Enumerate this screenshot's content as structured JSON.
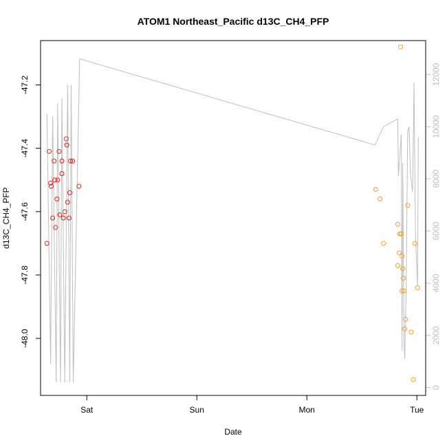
{
  "chart_data": {
    "type": "scatter",
    "title": "ATOM1 Northeast_Pacific d13C_CH4_PFP",
    "xlabel": "Date",
    "ylabel": "d13C_CH4_PFP",
    "x_ticks": [
      {
        "label": "Sat",
        "day": 1.0
      },
      {
        "label": "Sun",
        "day": 2.0
      },
      {
        "label": "Mon",
        "day": 3.0
      },
      {
        "label": "Tue",
        "day": 4.0
      }
    ],
    "xlim": [
      0.58,
      4.08
    ],
    "ylim": [
      -48.18,
      -47.06
    ],
    "y_ticks": [
      -48.0,
      -47.8,
      -47.6,
      -47.4,
      -47.2
    ],
    "right_axis": {
      "color": "#bebebe",
      "ticks": [
        0,
        2000,
        4000,
        6000,
        8000,
        10000,
        12000
      ],
      "ylim": [
        -300,
        13300
      ]
    },
    "colors": {
      "series1": "#e41a1c",
      "series2": "#ff9a1e",
      "altitude_line": "#bebebe"
    },
    "series": [
      {
        "color": "#e41a1c",
        "points": [
          {
            "x": 0.638,
            "y": -47.7
          },
          {
            "x": 0.658,
            "y": -47.41
          },
          {
            "x": 0.671,
            "y": -47.51
          },
          {
            "x": 0.677,
            "y": -47.52
          },
          {
            "x": 0.69,
            "y": -47.62
          },
          {
            "x": 0.703,
            "y": -47.44
          },
          {
            "x": 0.709,
            "y": -47.5
          },
          {
            "x": 0.716,
            "y": -47.65
          },
          {
            "x": 0.729,
            "y": -47.56
          },
          {
            "x": 0.735,
            "y": -47.5
          },
          {
            "x": 0.748,
            "y": -47.41
          },
          {
            "x": 0.755,
            "y": -47.61
          },
          {
            "x": 0.774,
            "y": -47.44
          },
          {
            "x": 0.774,
            "y": -47.48
          },
          {
            "x": 0.787,
            "y": -47.62
          },
          {
            "x": 0.8,
            "y": -47.6
          },
          {
            "x": 0.813,
            "y": -47.37
          },
          {
            "x": 0.819,
            "y": -47.39
          },
          {
            "x": 0.826,
            "y": -47.57
          },
          {
            "x": 0.839,
            "y": -47.62
          },
          {
            "x": 0.845,
            "y": -47.54
          },
          {
            "x": 0.852,
            "y": -47.44
          },
          {
            "x": 0.871,
            "y": -47.44
          },
          {
            "x": 0.929,
            "y": -47.52
          }
        ]
      },
      {
        "color": "#ff9a1e",
        "points": [
          {
            "x": 3.626,
            "y": -47.53
          },
          {
            "x": 3.665,
            "y": -47.56
          },
          {
            "x": 3.697,
            "y": -47.7
          },
          {
            "x": 3.826,
            "y": -47.64
          },
          {
            "x": 3.826,
            "y": -47.77
          },
          {
            "x": 3.839,
            "y": -47.73
          },
          {
            "x": 3.845,
            "y": -47.67
          },
          {
            "x": 3.852,
            "y": -47.08
          },
          {
            "x": 3.858,
            "y": -47.67
          },
          {
            "x": 3.865,
            "y": -47.85
          },
          {
            "x": 3.865,
            "y": -47.74
          },
          {
            "x": 3.871,
            "y": -47.78
          },
          {
            "x": 3.877,
            "y": -47.81
          },
          {
            "x": 3.884,
            "y": -47.85
          },
          {
            "x": 3.89,
            "y": -47.97
          },
          {
            "x": 3.897,
            "y": -47.94
          },
          {
            "x": 3.916,
            "y": -47.58
          },
          {
            "x": 3.948,
            "y": -47.98
          },
          {
            "x": 3.968,
            "y": -48.13
          },
          {
            "x": 3.981,
            "y": -47.7
          },
          {
            "x": 4.006,
            "y": -47.84
          }
        ]
      }
    ],
    "altitude_line": [
      {
        "x": 0.638,
        "alt": 10500
      },
      {
        "x": 0.671,
        "alt": 900
      },
      {
        "x": 0.69,
        "alt": 10400
      },
      {
        "x": 0.722,
        "alt": 200
      },
      {
        "x": 0.735,
        "alt": 10900
      },
      {
        "x": 0.761,
        "alt": 200
      },
      {
        "x": 0.774,
        "alt": 11100
      },
      {
        "x": 0.8,
        "alt": 200
      },
      {
        "x": 0.826,
        "alt": 11600
      },
      {
        "x": 0.845,
        "alt": 200
      },
      {
        "x": 0.858,
        "alt": 11600
      },
      {
        "x": 0.877,
        "alt": 200
      },
      {
        "x": 0.935,
        "alt": 12600
      },
      {
        "x": 3.619,
        "alt": 9300
      },
      {
        "x": 3.697,
        "alt": 10000
      },
      {
        "x": 3.826,
        "alt": 10300
      },
      {
        "x": 3.832,
        "alt": 8100
      },
      {
        "x": 3.858,
        "alt": 9700
      },
      {
        "x": 3.865,
        "alt": 1400
      },
      {
        "x": 3.871,
        "alt": 8600
      },
      {
        "x": 3.884,
        "alt": 1700
      },
      {
        "x": 3.89,
        "alt": 1100
      },
      {
        "x": 3.903,
        "alt": 3800
      },
      {
        "x": 3.916,
        "alt": 9800
      },
      {
        "x": 3.929,
        "alt": 10000
      },
      {
        "x": 3.942,
        "alt": 8200
      },
      {
        "x": 3.961,
        "alt": 7500
      },
      {
        "x": 3.974,
        "alt": 11700
      },
      {
        "x": 3.987,
        "alt": 5900
      },
      {
        "x": 4.006,
        "alt": 3900
      },
      {
        "x": 4.013,
        "alt": 9600
      }
    ]
  }
}
